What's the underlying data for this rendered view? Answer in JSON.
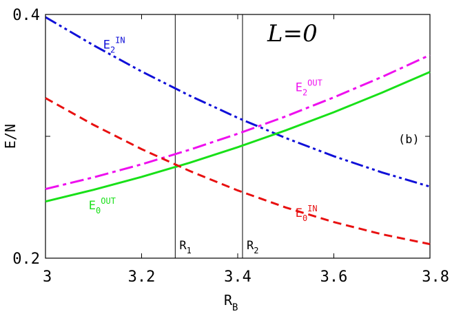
{
  "chart_data": {
    "type": "line",
    "title": "L=0",
    "panel_label": "(b)",
    "xlabel": {
      "main": "R",
      "sub": "B"
    },
    "ylabel": "E/N",
    "xlim": [
      3.0,
      3.8
    ],
    "ylim": [
      0.2,
      0.4
    ],
    "x_ticks": [
      "3",
      "3.2",
      "3.4",
      "3.6",
      "3.8"
    ],
    "y_ticks": [
      "0.2",
      "0.4"
    ],
    "vlines": [
      {
        "x": 3.27,
        "label": "R",
        "sub": "1"
      },
      {
        "x": 3.41,
        "label": "R",
        "sub": "2"
      }
    ],
    "series": [
      {
        "name": "E2 IN",
        "label_main": "E",
        "label_sub": "2",
        "label_sup": "IN",
        "color": "#1010d8",
        "dash": "dash-dot-dot",
        "x": [
          3.0,
          3.1,
          3.2,
          3.3,
          3.4,
          3.5,
          3.6,
          3.7,
          3.8
        ],
        "y": [
          0.3978,
          0.3747,
          0.3532,
          0.3334,
          0.3152,
          0.2986,
          0.2837,
          0.2704,
          0.2587
        ]
      },
      {
        "name": "E2 OUT",
        "label_main": "E",
        "label_sub": "2",
        "label_sup": "OUT",
        "color": "#ee10ee",
        "dash": "dash-dot",
        "x": [
          3.0,
          3.1,
          3.2,
          3.3,
          3.4,
          3.5,
          3.6,
          3.7,
          3.8
        ],
        "y": [
          0.2567,
          0.2663,
          0.277,
          0.289,
          0.3021,
          0.3164,
          0.332,
          0.3487,
          0.3667
        ]
      },
      {
        "name": "E0 OUT",
        "label_main": "E",
        "label_sub": "0",
        "label_sup": "OUT",
        "color": "#18e018",
        "dash": "solid",
        "x": [
          3.0,
          3.1,
          3.2,
          3.3,
          3.4,
          3.5,
          3.6,
          3.7,
          3.8
        ],
        "y": [
          0.2465,
          0.2561,
          0.2667,
          0.2783,
          0.2911,
          0.3049,
          0.3198,
          0.3358,
          0.3528
        ]
      },
      {
        "name": "E0 IN",
        "label_main": "E",
        "label_sub": "0",
        "label_sup": "IN",
        "color": "#e81010",
        "dash": "dashed",
        "x": [
          3.0,
          3.1,
          3.2,
          3.3,
          3.4,
          3.5,
          3.6,
          3.7,
          3.8
        ],
        "y": [
          0.3314,
          0.3094,
          0.2895,
          0.2716,
          0.2556,
          0.2416,
          0.2296,
          0.2196,
          0.2115
        ]
      }
    ],
    "grid": false,
    "legend": "inline labels"
  }
}
